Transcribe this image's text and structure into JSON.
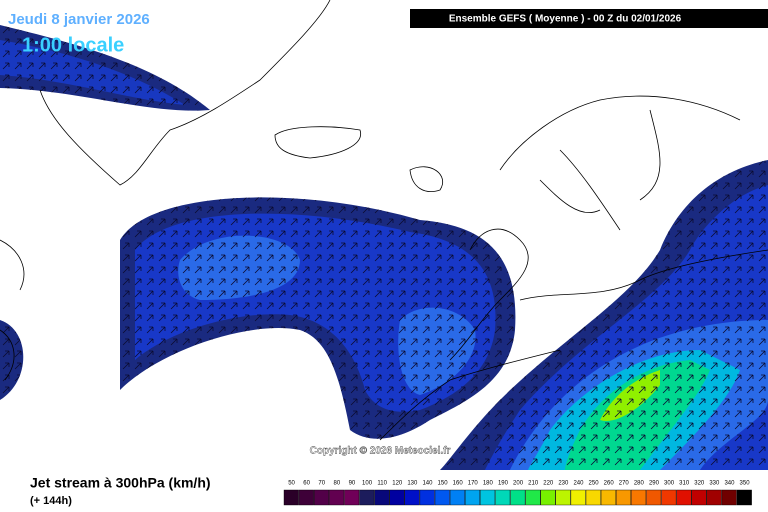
{
  "header": {
    "date": "Jeudi 8 janvier 2026",
    "time": "1:00 locale",
    "run": "Ensemble GEFS  ( Moyenne )  -  00 Z du 02/01/2026"
  },
  "copyright": "Copyright © 2026 Meteociel.fr",
  "footer": {
    "title": "Jet stream à 300hPa (km/h)",
    "lead": "(+ 144h)"
  },
  "legend": {
    "levels": [
      50,
      60,
      70,
      80,
      90,
      100,
      110,
      120,
      130,
      140,
      150,
      160,
      170,
      180,
      190,
      200,
      210,
      220,
      230,
      240,
      250,
      260,
      270,
      280,
      290,
      300,
      310,
      320,
      330,
      340,
      350
    ],
    "colors": [
      "#2a0028",
      "#3e0038",
      "#520048",
      "#620050",
      "#700058",
      "#1c1c5c",
      "#08087a",
      "#0000a0",
      "#0010c8",
      "#0030e0",
      "#0058f0",
      "#0080f4",
      "#00a4f0",
      "#00c4e0",
      "#00d8b8",
      "#00e088",
      "#20e848",
      "#78f000",
      "#bcf400",
      "#f0f000",
      "#f8d800",
      "#f8b800",
      "#f89800",
      "#f87800",
      "#f05800",
      "#f03800",
      "#e01000",
      "#c00000",
      "#a00000",
      "#700000",
      "#000000"
    ]
  }
}
